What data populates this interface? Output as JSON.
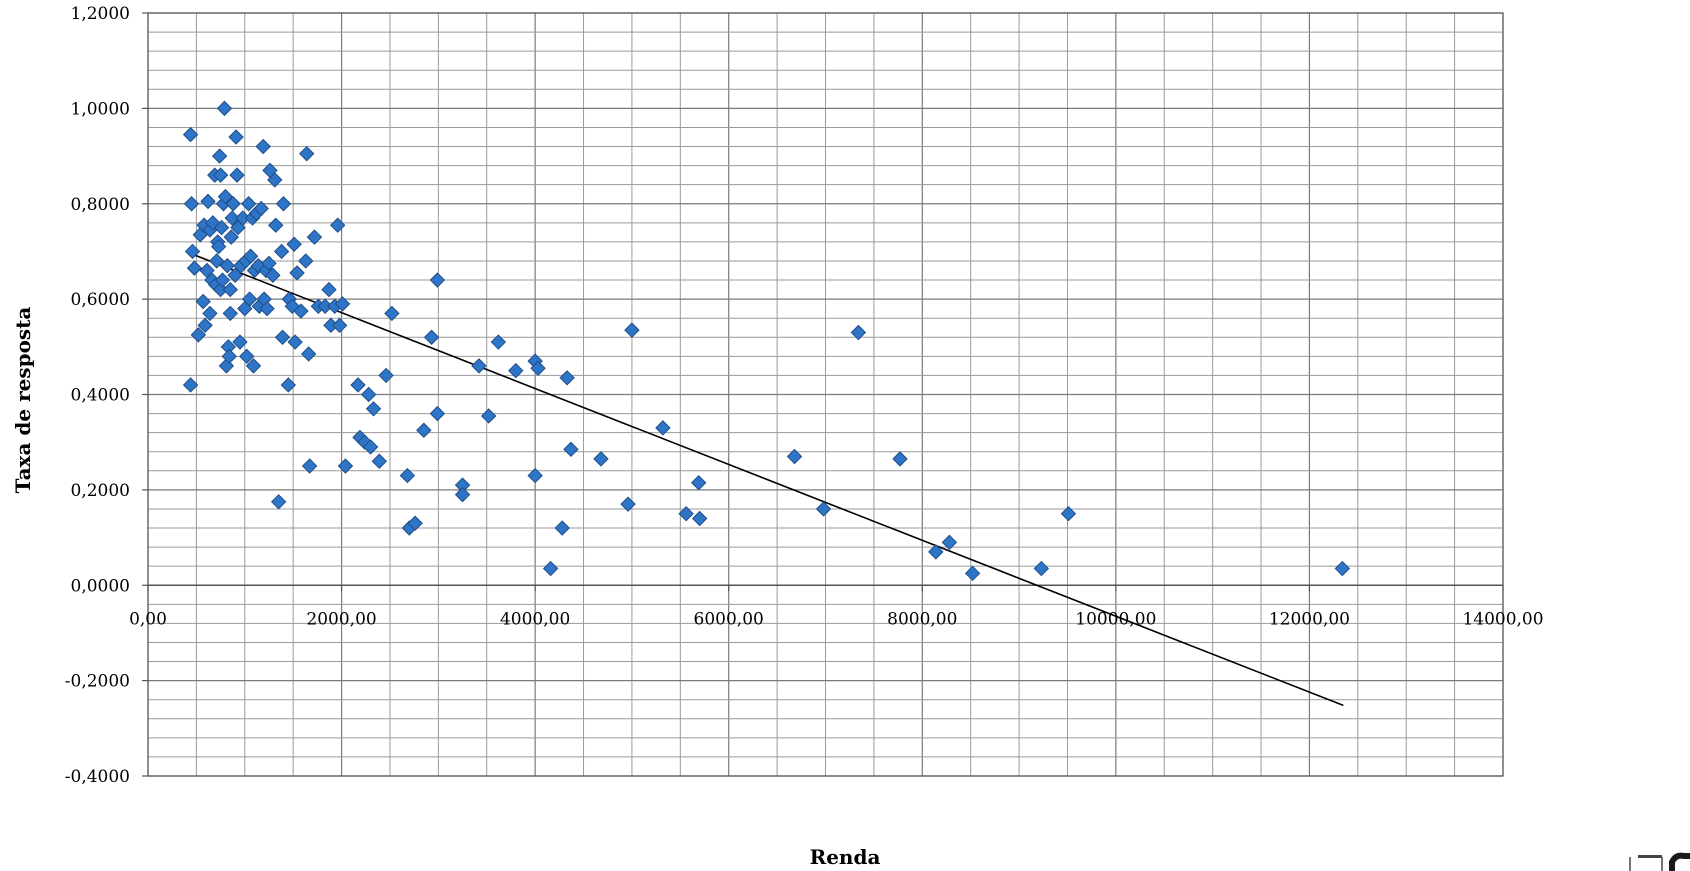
{
  "chart_data": {
    "type": "scatter",
    "title": "",
    "xlabel": "Renda",
    "ylabel": "Taxa de resposta",
    "xlim": [
      0,
      14000
    ],
    "ylim": [
      -0.4,
      1.2
    ],
    "grid": true,
    "x_ticks": [
      0,
      2000,
      4000,
      6000,
      8000,
      10000,
      12000,
      14000
    ],
    "x_tick_labels": [
      "0,00",
      "2000,00",
      "4000,00",
      "6000,00",
      "8000,00",
      "10000,00",
      "12000,00",
      "14000,00"
    ],
    "y_ticks": [
      -0.4,
      -0.2,
      0,
      0.2,
      0.4,
      0.6,
      0.8,
      1.0,
      1.2
    ],
    "y_tick_labels": [
      "-0,4000",
      "-0,2000",
      "0,0000",
      "0,2000",
      "0,4000",
      "0,6000",
      "0,8000",
      "1,0000",
      "1,2000"
    ],
    "colors": {
      "marker_fill": "#2E75C8",
      "marker_edge": "#1F4E86",
      "trend": "#000000",
      "grid": "#888888"
    },
    "trendline": {
      "x": [
        450,
        12350
      ],
      "y": [
        0.695,
        -0.252
      ]
    },
    "points": [
      [
        440,
        0.945
      ],
      [
        450,
        0.8
      ],
      [
        460,
        0.7
      ],
      [
        440,
        0.42
      ],
      [
        480,
        0.665
      ],
      [
        520,
        0.525
      ],
      [
        540,
        0.735
      ],
      [
        570,
        0.595
      ],
      [
        580,
        0.755
      ],
      [
        590,
        0.545
      ],
      [
        610,
        0.66
      ],
      [
        620,
        0.805
      ],
      [
        640,
        0.745
      ],
      [
        640,
        0.57
      ],
      [
        660,
        0.64
      ],
      [
        670,
        0.76
      ],
      [
        690,
        0.86
      ],
      [
        700,
        0.63
      ],
      [
        710,
        0.68
      ],
      [
        720,
        0.72
      ],
      [
        730,
        0.71
      ],
      [
        740,
        0.9
      ],
      [
        750,
        0.86
      ],
      [
        750,
        0.62
      ],
      [
        760,
        0.75
      ],
      [
        770,
        0.64
      ],
      [
        780,
        0.8
      ],
      [
        790,
        1.0
      ],
      [
        800,
        0.815
      ],
      [
        810,
        0.46
      ],
      [
        820,
        0.67
      ],
      [
        830,
        0.5
      ],
      [
        840,
        0.48
      ],
      [
        850,
        0.57
      ],
      [
        850,
        0.62
      ],
      [
        860,
        0.73
      ],
      [
        870,
        0.77
      ],
      [
        880,
        0.8
      ],
      [
        900,
        0.65
      ],
      [
        910,
        0.94
      ],
      [
        920,
        0.86
      ],
      [
        930,
        0.75
      ],
      [
        950,
        0.51
      ],
      [
        960,
        0.67
      ],
      [
        980,
        0.77
      ],
      [
        1000,
        0.58
      ],
      [
        1010,
        0.68
      ],
      [
        1020,
        0.48
      ],
      [
        1040,
        0.8
      ],
      [
        1050,
        0.6
      ],
      [
        1060,
        0.69
      ],
      [
        1080,
        0.77
      ],
      [
        1090,
        0.46
      ],
      [
        1100,
        0.66
      ],
      [
        1120,
        0.78
      ],
      [
        1140,
        0.67
      ],
      [
        1150,
        0.585
      ],
      [
        1170,
        0.79
      ],
      [
        1190,
        0.92
      ],
      [
        1200,
        0.6
      ],
      [
        1220,
        0.66
      ],
      [
        1230,
        0.58
      ],
      [
        1250,
        0.675
      ],
      [
        1260,
        0.87
      ],
      [
        1290,
        0.65
      ],
      [
        1310,
        0.85
      ],
      [
        1320,
        0.755
      ],
      [
        1350,
        0.175
      ],
      [
        1380,
        0.7
      ],
      [
        1390,
        0.52
      ],
      [
        1400,
        0.8
      ],
      [
        1450,
        0.42
      ],
      [
        1460,
        0.6
      ],
      [
        1490,
        0.585
      ],
      [
        1510,
        0.715
      ],
      [
        1520,
        0.51
      ],
      [
        1540,
        0.655
      ],
      [
        1580,
        0.575
      ],
      [
        1630,
        0.68
      ],
      [
        1640,
        0.905
      ],
      [
        1660,
        0.485
      ],
      [
        1670,
        0.25
      ],
      [
        1720,
        0.73
      ],
      [
        1760,
        0.585
      ],
      [
        1830,
        0.585
      ],
      [
        1870,
        0.62
      ],
      [
        1890,
        0.545
      ],
      [
        1930,
        0.585
      ],
      [
        1960,
        0.755
      ],
      [
        1980,
        0.545
      ],
      [
        2010,
        0.59
      ],
      [
        2040,
        0.25
      ],
      [
        2170,
        0.42
      ],
      [
        2190,
        0.31
      ],
      [
        2240,
        0.3
      ],
      [
        2280,
        0.4
      ],
      [
        2300,
        0.29
      ],
      [
        2330,
        0.37
      ],
      [
        2390,
        0.26
      ],
      [
        2460,
        0.44
      ],
      [
        2520,
        0.57
      ],
      [
        2680,
        0.23
      ],
      [
        2700,
        0.12
      ],
      [
        2760,
        0.13
      ],
      [
        2850,
        0.325
      ],
      [
        2930,
        0.52
      ],
      [
        2990,
        0.36
      ],
      [
        2990,
        0.64
      ],
      [
        3250,
        0.21
      ],
      [
        3250,
        0.19
      ],
      [
        3420,
        0.46
      ],
      [
        3520,
        0.355
      ],
      [
        3620,
        0.51
      ],
      [
        3800,
        0.45
      ],
      [
        4000,
        0.47
      ],
      [
        4000,
        0.23
      ],
      [
        4030,
        0.455
      ],
      [
        4160,
        0.035
      ],
      [
        4280,
        0.12
      ],
      [
        4330,
        0.435
      ],
      [
        4370,
        0.285
      ],
      [
        4680,
        0.265
      ],
      [
        4960,
        0.17
      ],
      [
        5000,
        0.535
      ],
      [
        5320,
        0.33
      ],
      [
        5560,
        0.15
      ],
      [
        5690,
        0.215
      ],
      [
        5700,
        0.14
      ],
      [
        6680,
        0.27
      ],
      [
        6980,
        0.16
      ],
      [
        7340,
        0.53
      ],
      [
        7770,
        0.265
      ],
      [
        8140,
        0.07
      ],
      [
        8280,
        0.09
      ],
      [
        8520,
        0.025
      ],
      [
        9230,
        0.035
      ],
      [
        9510,
        0.15
      ],
      [
        12340,
        0.035
      ]
    ]
  }
}
